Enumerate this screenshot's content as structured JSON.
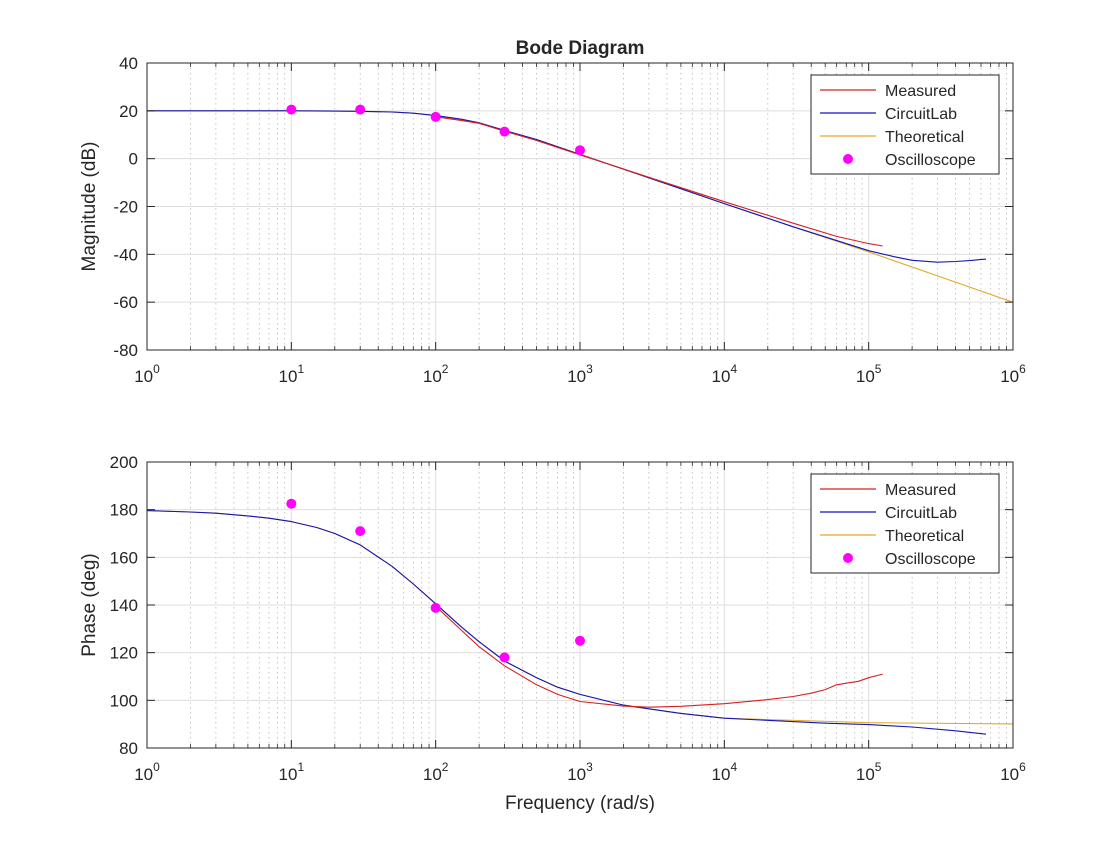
{
  "chart_data": {
    "type": "line",
    "title": "Bode Diagram",
    "xlabel": "Frequency (rad/s)",
    "x_scale": "log",
    "xlim": [
      1,
      1000000
    ],
    "x_tick_labels": [
      {
        "base": "10",
        "exp": "0"
      },
      {
        "base": "10",
        "exp": "1"
      },
      {
        "base": "10",
        "exp": "2"
      },
      {
        "base": "10",
        "exp": "3"
      },
      {
        "base": "10",
        "exp": "4"
      },
      {
        "base": "10",
        "exp": "5"
      },
      {
        "base": "10",
        "exp": "6"
      }
    ],
    "grid": true,
    "colors": {
      "Measured": "#d62020",
      "CircuitLab": "#1515b8",
      "Theoretical": "#e3a82b",
      "Oscilloscope": "#ff00ff"
    },
    "legend": {
      "placement": "top-right",
      "entries": [
        "Measured",
        "CircuitLab",
        "Theoretical",
        "Oscilloscope"
      ]
    },
    "panels": [
      {
        "ylabel": "Magnitude (dB)",
        "ylim": [
          -80,
          40
        ],
        "yticks": [
          40,
          20,
          0,
          -20,
          -40,
          -60,
          -80
        ],
        "series": [
          {
            "name": "Theoretical",
            "style": "line",
            "x": [
              1,
              3,
              10,
              20,
              30,
              50,
              70,
              100,
              150,
              200,
              300,
              500,
              1000,
              3000,
              10000,
              30000,
              100000,
              300000,
              1000000
            ],
            "y": [
              20,
              20,
              20,
              19.9,
              19.8,
              19.5,
              19,
              18,
              16.5,
              15,
              11.8,
              8,
              1.8,
              -8,
              -18.8,
              -28.5,
              -39,
              -49,
              -60
            ]
          },
          {
            "name": "CircuitLab",
            "style": "line",
            "x": [
              1,
              3,
              10,
              20,
              30,
              50,
              70,
              100,
              150,
              200,
              300,
              500,
              1000,
              3000,
              10000,
              30000,
              100000,
              150000,
              200000,
              300000,
              400000,
              500000,
              650000
            ],
            "y": [
              20,
              20,
              20,
              19.9,
              19.8,
              19.5,
              19,
              18,
              16.5,
              15,
              11.8,
              8,
              1.8,
              -8,
              -18.8,
              -28.5,
              -38.5,
              -41,
              -42.5,
              -43.3,
              -43,
              -42.6,
              -42
            ]
          },
          {
            "name": "Measured",
            "style": "line",
            "x": [
              100,
              150,
              200,
              300,
              500,
              1000,
              3000,
              10000,
              30000,
              60000,
              100000,
              125000
            ],
            "y": [
              17.5,
              16,
              14.8,
              11.5,
              7.6,
              1.6,
              -7.8,
              -18,
              -27,
              -32.5,
              -35.5,
              -36.5
            ]
          },
          {
            "name": "Oscilloscope",
            "style": "marker",
            "x": [
              10,
              30,
              100,
              300,
              1000
            ],
            "y": [
              20.5,
              20.5,
              17.5,
              11.3,
              3.5
            ]
          }
        ]
      },
      {
        "ylabel": "Phase (deg)",
        "ylim": [
          80,
          200
        ],
        "yticks": [
          200,
          180,
          160,
          140,
          120,
          100,
          80
        ],
        "series": [
          {
            "name": "Theoretical",
            "style": "line",
            "x": [
              1,
              2,
              3,
              5,
              7,
              10,
              15,
              20,
              30,
              50,
              70,
              100,
              150,
              200,
              300,
              500,
              700,
              1000,
              2000,
              5000,
              10000,
              100000,
              1000000
            ],
            "y": [
              179.6,
              179,
              178.5,
              177.4,
              176.4,
              175,
              172.5,
              170,
              165.2,
              156.2,
              148.8,
              140.5,
              130.9,
              124.6,
              116.5,
              109.5,
              105.5,
              102.5,
              98,
              94.5,
              92.5,
              90.6,
              90.1
            ]
          },
          {
            "name": "CircuitLab",
            "style": "line",
            "x": [
              1,
              2,
              3,
              5,
              7,
              10,
              15,
              20,
              30,
              50,
              70,
              100,
              150,
              200,
              300,
              500,
              700,
              1000,
              2000,
              5000,
              10000,
              50000,
              100000,
              200000,
              400000,
              650000
            ],
            "y": [
              179.6,
              179,
              178.5,
              177.4,
              176.4,
              175,
              172.5,
              170,
              165.2,
              156.2,
              148.8,
              140.5,
              130.9,
              124.6,
              116.5,
              109.5,
              105.5,
              102.5,
              98,
              94.5,
              92.5,
              90.4,
              89.8,
              88.8,
              87.2,
              85.8
            ]
          },
          {
            "name": "Measured",
            "style": "line",
            "x": [
              100,
              150,
              200,
              300,
              500,
              700,
              1000,
              2000,
              3000,
              5000,
              10000,
              20000,
              30000,
              40000,
              50000,
              60000,
              70000,
              85000,
              100000,
              125000
            ],
            "y": [
              139.5,
              129.5,
              122.5,
              114.5,
              106.5,
              102.5,
              99.5,
              97.6,
              97.1,
              97.5,
              98.6,
              100.3,
              101.6,
              103,
              104.5,
              106.5,
              107.2,
              108,
              109.5,
              111
            ]
          },
          {
            "name": "Oscilloscope",
            "style": "marker",
            "x": [
              10,
              30,
              100,
              300,
              1000
            ],
            "y": [
              182.5,
              171,
              138.8,
              118,
              125
            ]
          }
        ]
      }
    ]
  }
}
